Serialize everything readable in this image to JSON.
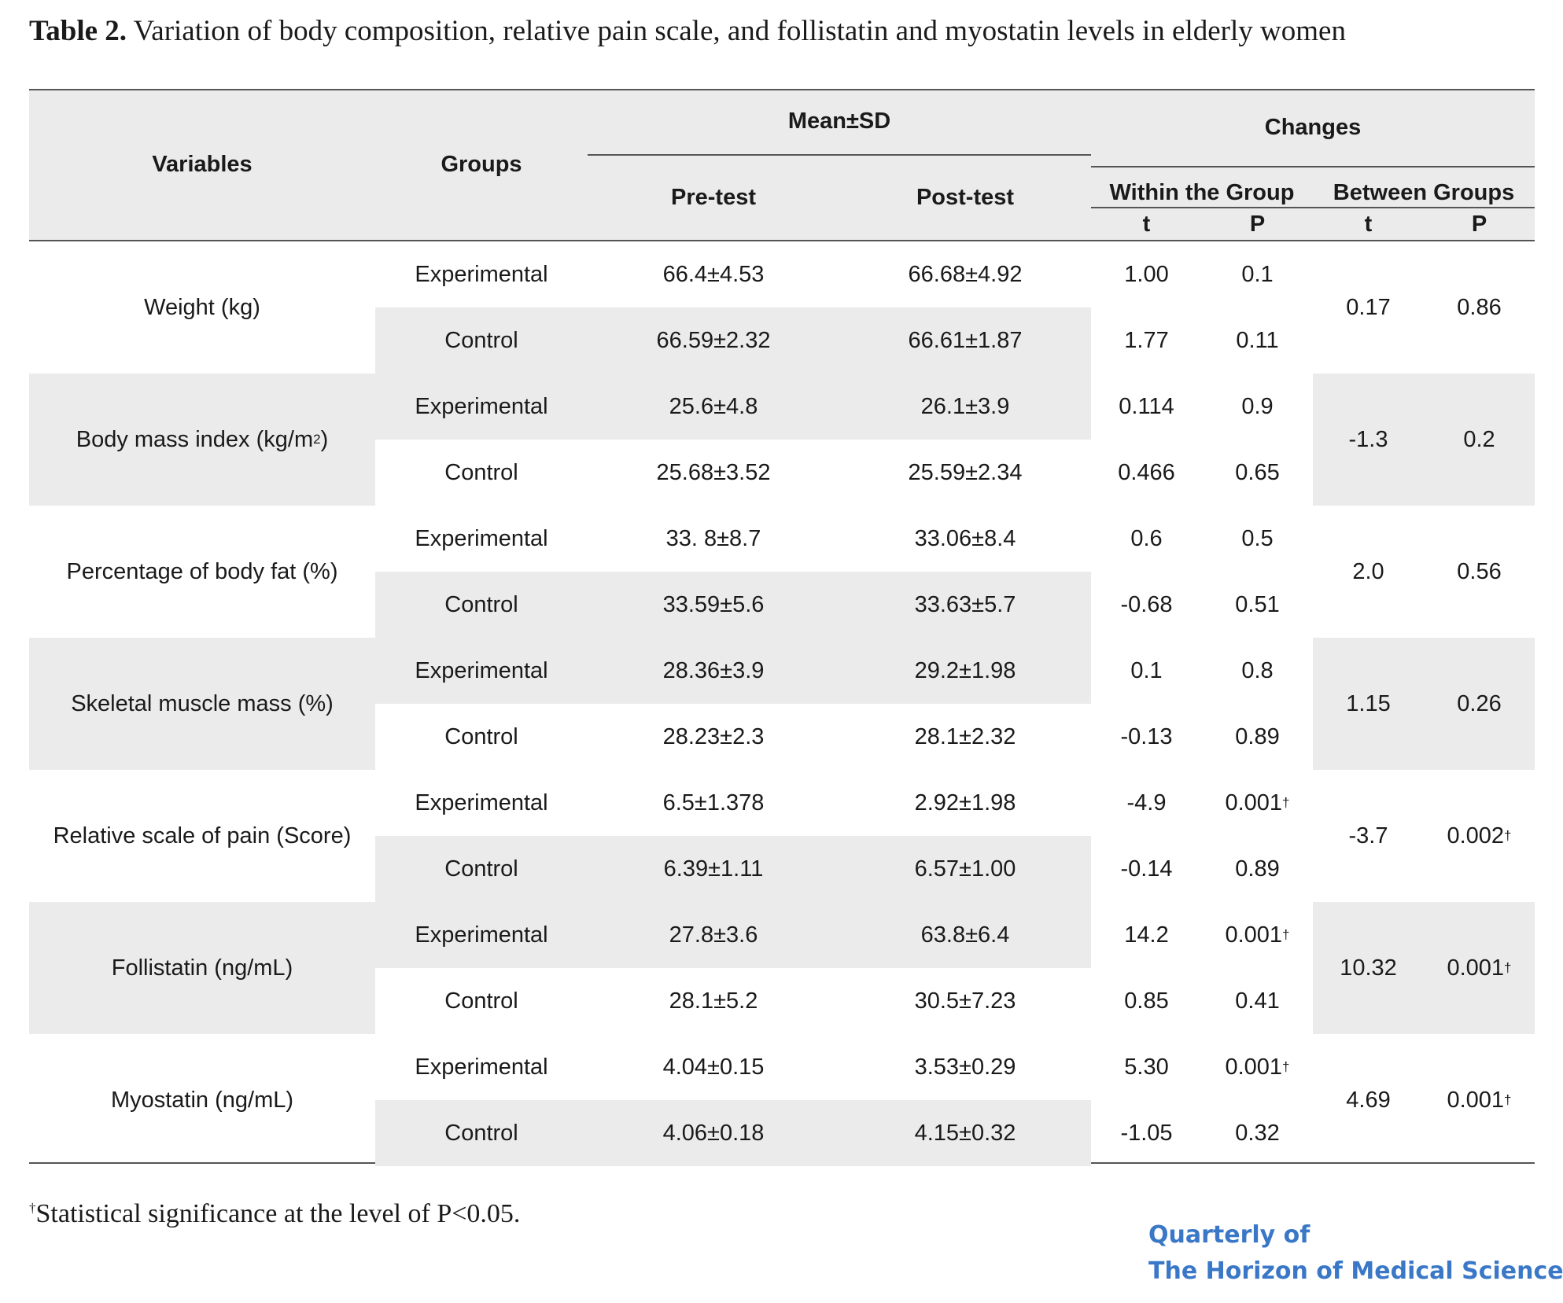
{
  "caption": {
    "label": "Table 2.",
    "text": "Variation of body composition, relative pain scale, and follistatin and myostatin levels in elderly  women"
  },
  "table": {
    "headers": {
      "variables": "Variables",
      "groups": "Groups",
      "mean_sd": "Mean±SD",
      "pre_test": "Pre-test",
      "post_test": "Post-test",
      "changes": "Changes",
      "within": "Within the Group",
      "between": "Between Groups",
      "t1": "t",
      "p1": "P",
      "t2": "t",
      "p2": "P"
    },
    "rows": [
      {
        "variable": "Weight (kg)",
        "groups": [
          {
            "group": "Experimental",
            "pre": "66.4±4.53",
            "post": "66.68±4.92",
            "t": "1.00",
            "p": "0.1",
            "p_sig": ""
          },
          {
            "group": "Control",
            "pre": "66.59±2.32",
            "post": "66.61±1.87",
            "t": "1.77",
            "p": "0.11",
            "p_sig": ""
          }
        ],
        "between_t": "0.17",
        "between_p": "0.86",
        "between_p_sig": ""
      },
      {
        "variable": "Body mass index (kg/m",
        "variable_sup": "2",
        "variable_end": ")",
        "groups": [
          {
            "group": "Experimental",
            "pre": "25.6±4.8",
            "post": "26.1±3.9",
            "t": "0.114",
            "p": "0.9",
            "p_sig": ""
          },
          {
            "group": "Control",
            "pre": "25.68±3.52",
            "post": "25.59±2.34",
            "t": "0.466",
            "p": "0.65",
            "p_sig": ""
          }
        ],
        "between_t": "-1.3",
        "between_p": "0.2",
        "between_p_sig": ""
      },
      {
        "variable": "Percentage of body fat (%)",
        "groups": [
          {
            "group": "Experimental",
            "pre": "33. 8±8.7",
            "post": "33.06±8.4",
            "t": "0.6",
            "p": "0.5",
            "p_sig": ""
          },
          {
            "group": "Control",
            "pre": "33.59±5.6",
            "post": "33.63±5.7",
            "t": "-0.68",
            "p": "0.51",
            "p_sig": ""
          }
        ],
        "between_t": "2.0",
        "between_p": "0.56",
        "between_p_sig": ""
      },
      {
        "variable": "Skeletal muscle mass (%)",
        "groups": [
          {
            "group": "Experimental",
            "pre": "28.36±3.9",
            "post": "29.2±1.98",
            "t": "0.1",
            "p": "0.8",
            "p_sig": ""
          },
          {
            "group": "Control",
            "pre": "28.23±2.3",
            "post": "28.1±2.32",
            "t": "-0.13",
            "p": "0.89",
            "p_sig": ""
          }
        ],
        "between_t": "1.15",
        "between_p": "0.26",
        "between_p_sig": ""
      },
      {
        "variable": "Relative scale of pain (Score)",
        "groups": [
          {
            "group": "Experimental",
            "pre": "6.5±1.378",
            "post": "2.92±1.98",
            "t": "-4.9",
            "p": "0.001",
            "p_sig": "†"
          },
          {
            "group": "Control",
            "pre": "6.39±1.11",
            "post": "6.57±1.00",
            "t": "-0.14",
            "p": "0.89",
            "p_sig": ""
          }
        ],
        "between_t": "-3.7",
        "between_p": "0.002",
        "between_p_sig": "†"
      },
      {
        "variable": "Follistatin (ng/mL)",
        "groups": [
          {
            "group": "Experimental",
            "pre": "27.8±3.6",
            "post": "63.8±6.4",
            "t": "14.2",
            "p": "0.001",
            "p_sig": "†"
          },
          {
            "group": "Control",
            "pre": "28.1±5.2",
            "post": "30.5±7.23",
            "t": "0.85",
            "p": "0.41",
            "p_sig": ""
          }
        ],
        "between_t": "10.32",
        "between_p": "0.001",
        "between_p_sig": "†"
      },
      {
        "variable": "Myostatin (ng/mL)",
        "groups": [
          {
            "group": "Experimental",
            "pre": "4.04±0.15",
            "post": "3.53±0.29",
            "t": "5.30",
            "p": "0.001",
            "p_sig": "†"
          },
          {
            "group": "Control",
            "pre": "4.06±0.18",
            "post": "4.15±0.32",
            "t": "-1.05",
            "p": "0.32",
            "p_sig": ""
          }
        ],
        "between_t": "4.69",
        "between_p": "0.001",
        "between_p_sig": "†"
      }
    ]
  },
  "footnote": {
    "mark": "†",
    "text": "Statistical significance at the level of P<0.05."
  },
  "journal": {
    "line1": "Quarterly of",
    "line2": "The Horizon of Medical Sciences"
  }
}
